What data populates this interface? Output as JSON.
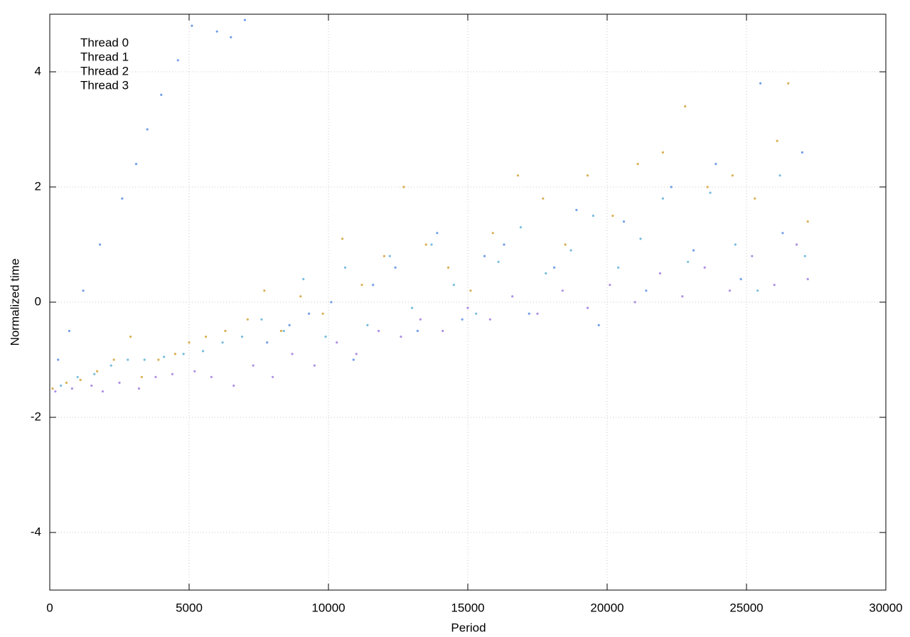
{
  "chart_data": {
    "type": "scatter",
    "x_label": "Period",
    "y_label": "Normalized time",
    "xlim": [
      0,
      30000
    ],
    "ylim": [
      -5,
      5
    ],
    "xticks": [
      0,
      5000,
      10000,
      15000,
      20000,
      25000,
      30000
    ],
    "yticks": [
      -4,
      -2,
      0,
      2,
      4
    ],
    "grid": true,
    "legend": "top-left",
    "series": [
      {
        "name": "Thread 0",
        "color": "#a07ce0",
        "x": [
          200,
          800,
          1500,
          1900,
          2500,
          3200,
          3800,
          4400,
          5200,
          5800,
          6600,
          7300,
          8000,
          8700,
          9500,
          10300,
          11000,
          11800,
          12600,
          13300,
          14100,
          15000,
          15800,
          16600,
          17500,
          18400,
          19300,
          20100,
          21000,
          21900,
          22700,
          23500,
          24400,
          25200,
          26000,
          26800,
          27200
        ],
        "values": [
          -1.55,
          -1.5,
          -1.45,
          -1.55,
          -1.4,
          -1.5,
          -1.3,
          -1.25,
          -1.2,
          -1.3,
          -1.45,
          -1.1,
          -1.3,
          -0.9,
          -1.1,
          -0.7,
          -0.9,
          -0.5,
          -0.6,
          -0.3,
          -0.5,
          -0.1,
          -0.3,
          0.1,
          -0.2,
          0.2,
          -0.1,
          0.3,
          0.0,
          0.5,
          0.1,
          0.6,
          0.2,
          0.8,
          0.3,
          1.0,
          0.4
        ]
      },
      {
        "name": "Thread 1",
        "color": "#5b8ee6",
        "x": [
          300,
          700,
          1200,
          1800,
          2600,
          3100,
          3500,
          4000,
          4600,
          5100,
          6000,
          6500,
          7000,
          7800,
          8600,
          9300,
          10100,
          10900,
          11600,
          12400,
          13200,
          13900,
          14800,
          15600,
          16300,
          17200,
          18100,
          18900,
          19700,
          20600,
          21400,
          22300,
          23100,
          23900,
          24800,
          25500,
          26300,
          27000
        ],
        "values": [
          -1.0,
          -0.5,
          0.2,
          1.0,
          1.8,
          2.4,
          3.0,
          3.6,
          4.2,
          4.8,
          4.7,
          4.6,
          4.9,
          -0.7,
          -0.4,
          -0.2,
          0.0,
          -1.0,
          0.3,
          0.6,
          -0.5,
          1.2,
          -0.3,
          0.8,
          1.0,
          -0.2,
          0.6,
          1.6,
          -0.4,
          1.4,
          0.2,
          2.0,
          0.9,
          2.4,
          0.4,
          3.8,
          1.2,
          2.6
        ]
      },
      {
        "name": "Thread 2",
        "color": "#62b2d8",
        "x": [
          400,
          1000,
          1600,
          2200,
          2800,
          3400,
          4100,
          4800,
          5500,
          6200,
          6900,
          7600,
          8400,
          9100,
          9900,
          10600,
          11400,
          12200,
          13000,
          13700,
          14500,
          15300,
          16100,
          16900,
          17800,
          18700,
          19500,
          20400,
          21200,
          22000,
          22900,
          23700,
          24600,
          25400,
          26200,
          27100
        ],
        "values": [
          -1.45,
          -1.3,
          -1.25,
          -1.1,
          -1.0,
          -1.0,
          -0.95,
          -0.9,
          -0.85,
          -0.7,
          -0.6,
          -0.3,
          -0.5,
          0.4,
          -0.6,
          0.6,
          -0.4,
          0.8,
          -0.1,
          1.0,
          0.3,
          -0.2,
          0.7,
          1.3,
          0.5,
          0.9,
          1.5,
          0.6,
          1.1,
          1.8,
          0.7,
          1.9,
          1.0,
          0.2,
          2.2,
          0.8
        ]
      },
      {
        "name": "Thread 3",
        "color": "#d1a236",
        "x": [
          100,
          600,
          1100,
          1700,
          2300,
          2900,
          3300,
          3900,
          4500,
          5000,
          5600,
          6300,
          7100,
          7700,
          8300,
          9000,
          9800,
          10500,
          11200,
          12000,
          12700,
          13500,
          14300,
          15100,
          15900,
          16800,
          17700,
          18500,
          19300,
          20200,
          21100,
          22000,
          22800,
          23600,
          24500,
          25300,
          26100,
          26500,
          27200
        ],
        "values": [
          -1.5,
          -1.4,
          -1.35,
          -1.2,
          -1.0,
          -0.6,
          -1.3,
          -1.0,
          -0.9,
          -0.7,
          -0.6,
          -0.5,
          -0.3,
          0.2,
          -0.5,
          0.1,
          -0.2,
          1.1,
          0.3,
          0.8,
          2.0,
          1.0,
          0.6,
          0.2,
          1.2,
          2.2,
          1.8,
          1.0,
          2.2,
          1.5,
          2.4,
          2.6,
          3.4,
          2.0,
          2.2,
          1.8,
          2.8,
          3.8,
          1.4
        ]
      }
    ]
  }
}
